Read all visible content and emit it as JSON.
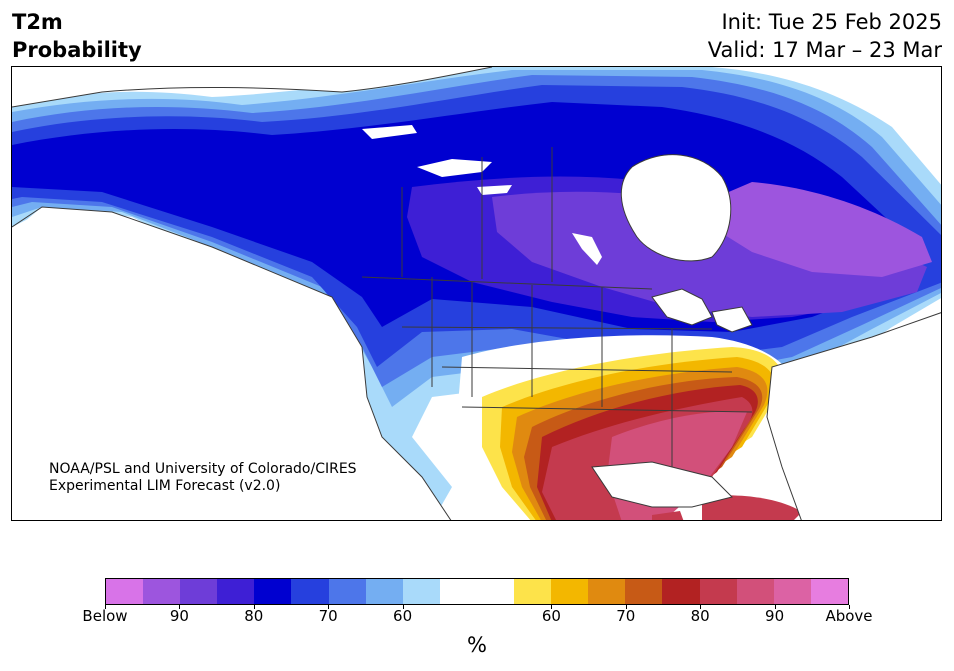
{
  "header": {
    "variable": "T2m",
    "subtitle": "Probability",
    "init": "Init: Tue 25 Feb 2025",
    "valid": "Valid: 17 Mar – 23 Mar"
  },
  "credit": {
    "line1": "NOAA/PSL and University of Colorado/CIRES",
    "line2": "Experimental LIM Forecast (v2.0)"
  },
  "colorbar": {
    "colors": [
      "#d873e8",
      "#9d55de",
      "#6e3dd8",
      "#3e1fd5",
      "#0000d0",
      "#2640de",
      "#4d76ea",
      "#74aef2",
      "#a9dafa",
      "#ffffff",
      "#ffffff",
      "#fde34a",
      "#f3b700",
      "#e08a10",
      "#c75a16",
      "#b22222",
      "#c43a4e",
      "#d2507a",
      "#dc62a4",
      "#e77de0"
    ],
    "ticks": [
      "Below",
      "90",
      "80",
      "70",
      "60",
      "60",
      "70",
      "80",
      "90",
      "Above"
    ],
    "unit": "%"
  },
  "map": {
    "colors": {
      "deep_blue": "#0000d0",
      "blue": "#2640de",
      "mid_blue": "#4d76ea",
      "light_blue": "#74aef2",
      "pale_blue": "#a9dafa",
      "indigo": "#3e1fd5",
      "violet": "#6e3dd8",
      "purple": "#9d55de",
      "yellow": "#fde34a",
      "gold": "#f3b700",
      "orange": "#e08a10",
      "burnt": "#c75a16",
      "red": "#b22222",
      "crimson": "#c43a4e",
      "rose": "#d2507a",
      "border": "#3a3a3a"
    }
  }
}
